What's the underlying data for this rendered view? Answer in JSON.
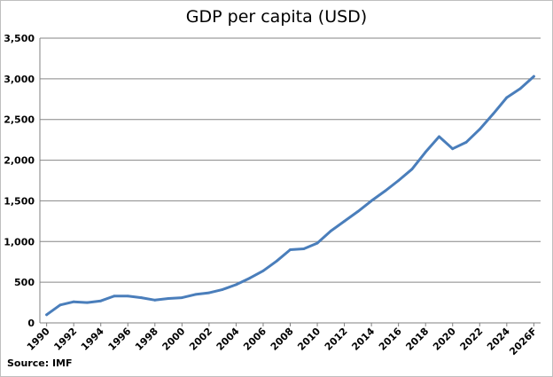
{
  "chart_data": {
    "type": "line",
    "title": "GDP per capita (USD)",
    "source": "Source: IMF",
    "xlabel": "",
    "ylabel": "",
    "ylim": [
      0,
      3500
    ],
    "y_ticks": [
      "0",
      "500",
      "1,000",
      "1,500",
      "2,000",
      "2,500",
      "3,000",
      "3,500"
    ],
    "x_tick_labels": [
      "1990",
      "1992",
      "1994",
      "1996",
      "1998",
      "2000",
      "2002",
      "2004",
      "2006",
      "2008",
      "2010",
      "2012",
      "2014",
      "2016",
      "2018",
      "2020",
      "2022",
      "2024",
      "2026F"
    ],
    "grid": true,
    "legend": "none",
    "series_color": "#4a7ebb",
    "x": [
      "1990",
      "1991",
      "1992",
      "1993",
      "1994",
      "1995",
      "1996",
      "1997",
      "1998",
      "1999",
      "2000",
      "2001",
      "2002",
      "2003",
      "2004",
      "2005",
      "2006",
      "2007",
      "2008",
      "2009",
      "2010",
      "2011",
      "2012",
      "2013",
      "2014",
      "2015",
      "2016",
      "2017",
      "2018",
      "2019",
      "2020",
      "2021",
      "2022",
      "2023",
      "2024",
      "2025",
      "2026F"
    ],
    "series": [
      {
        "values": [
          100,
          220,
          260,
          250,
          270,
          330,
          330,
          310,
          280,
          300,
          310,
          350,
          370,
          410,
          470,
          550,
          640,
          760,
          900,
          910,
          980,
          1130,
          1250,
          1370,
          1500,
          1620,
          1750,
          1890,
          2100,
          2290,
          2140,
          2220,
          2380,
          2570,
          2770,
          2880,
          3030
        ]
      }
    ]
  }
}
